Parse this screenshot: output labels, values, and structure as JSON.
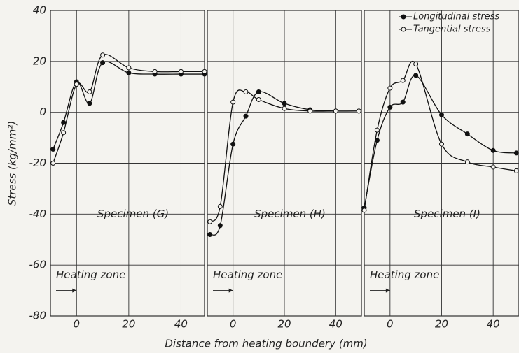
{
  "chart_data": [
    {
      "type": "line",
      "title": "Specimen (G)",
      "annotation": "Heating zone",
      "y_label": "Stress (kg/mm²)",
      "x": [
        -9,
        -5,
        0,
        5,
        10,
        20,
        30,
        40,
        49
      ],
      "series": [
        {
          "color": "#111111",
          "marker": "filled",
          "values": [
            -14.5,
            -4,
            12,
            3.5,
            19.5,
            15.5,
            15,
            15,
            15
          ]
        },
        {
          "color": "#111111",
          "marker": "open",
          "values": [
            -20,
            -8,
            11,
            8,
            22.5,
            17.5,
            16,
            16,
            16
          ]
        }
      ],
      "xlim": [
        -10,
        49
      ],
      "ylim": [
        -80,
        40
      ],
      "xticks": [
        0,
        20,
        40
      ],
      "yticks": [
        40,
        20,
        0,
        -20,
        -40,
        -60,
        -80
      ],
      "grid": true
    },
    {
      "type": "line",
      "title": "Specimen (H)",
      "annotation": "Heating zone",
      "x_label": "Distance from heating boundery (mm)",
      "x": [
        -9,
        -5,
        0,
        5,
        10,
        20,
        30,
        40,
        49
      ],
      "series": [
        {
          "color": "#111111",
          "marker": "filled",
          "values": [
            -48,
            -44.5,
            -12.5,
            -1.5,
            8,
            3.5,
            1,
            0.5,
            0.5
          ]
        },
        {
          "color": "#111111",
          "marker": "open",
          "values": [
            -43,
            -37,
            4,
            8,
            5,
            1.5,
            0.5,
            0.5,
            0.5
          ]
        }
      ],
      "xlim": [
        -10,
        50
      ],
      "ylim": [
        -80,
        40
      ],
      "xticks": [
        0,
        20,
        40
      ],
      "yticks": [
        40,
        20,
        0,
        -20,
        -40,
        -60,
        -80
      ],
      "grid": true
    },
    {
      "type": "line",
      "title": "Specimen (I)",
      "annotation": "Heating zone",
      "legend": "top-right",
      "x": [
        -10,
        -5,
        0,
        5,
        10,
        20,
        30,
        40,
        49
      ],
      "series": [
        {
          "name": "Longitudinal stress",
          "color": "#111111",
          "marker": "filled",
          "values": [
            -37.5,
            -11,
            2,
            4,
            14.5,
            -1,
            -8.5,
            -15,
            -16
          ]
        },
        {
          "name": "Tangential stress",
          "color": "#111111",
          "marker": "open",
          "values": [
            -38.5,
            -7,
            9.5,
            12.5,
            19,
            -12.5,
            -19.5,
            -21.5,
            -23
          ]
        }
      ],
      "xlim": [
        -10,
        50
      ],
      "ylim": [
        -80,
        40
      ],
      "xticks": [
        0,
        20,
        40
      ],
      "yticks": [
        40,
        20,
        0,
        -20,
        -40,
        -60,
        -80
      ],
      "grid": true
    }
  ]
}
